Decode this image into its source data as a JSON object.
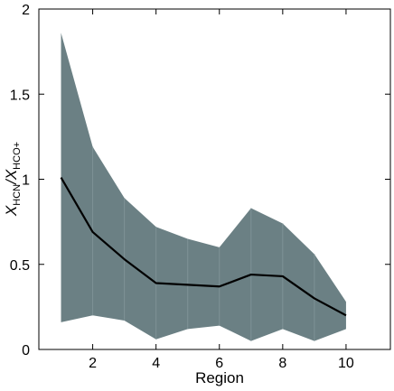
{
  "chart_data": {
    "type": "area",
    "title": "",
    "xlabel": "Region",
    "ylabel": {
      "main": "X",
      "sub1": "HCN",
      "sep": "/X",
      "sub2": "HCO+"
    },
    "xlim": [
      0.3,
      11.4
    ],
    "ylim": [
      0,
      2
    ],
    "x_ticks": [
      2,
      4,
      6,
      8,
      10
    ],
    "y_ticks": [
      0,
      0.5,
      1,
      1.5,
      2
    ],
    "y_tick_labels": [
      "0",
      "0.5",
      "1",
      "1.5",
      "2"
    ],
    "grid": false,
    "legend": "none",
    "x": [
      1,
      2,
      3,
      4,
      5,
      6,
      7,
      8,
      9,
      10
    ],
    "series": [
      {
        "role": "median",
        "values": [
          1.01,
          0.69,
          0.53,
          0.39,
          0.38,
          0.37,
          0.44,
          0.43,
          0.3,
          0.2
        ]
      },
      {
        "role": "upper",
        "values": [
          1.86,
          1.19,
          0.89,
          0.72,
          0.65,
          0.6,
          0.83,
          0.74,
          0.56,
          0.28
        ]
      },
      {
        "role": "lower",
        "values": [
          0.16,
          0.2,
          0.17,
          0.06,
          0.12,
          0.14,
          0.05,
          0.12,
          0.05,
          0.12
        ]
      }
    ],
    "colors": {
      "band": "#6b8084",
      "band_divider": "#7e9296",
      "line": "#000000",
      "axes": "#000000"
    }
  }
}
